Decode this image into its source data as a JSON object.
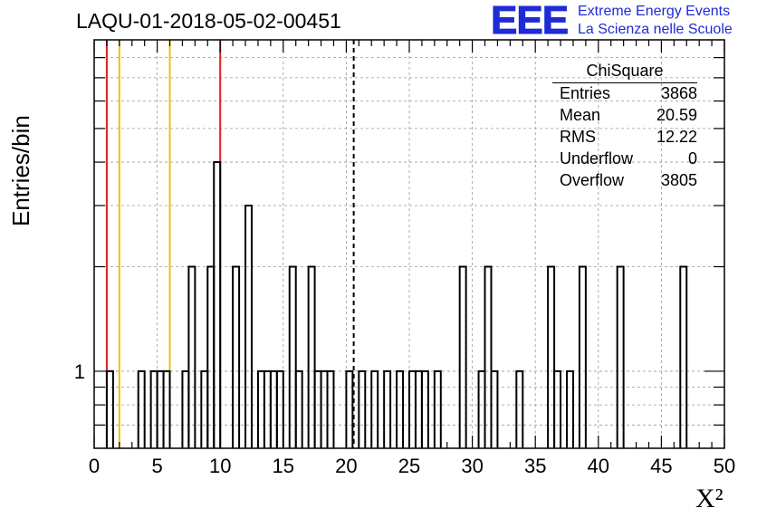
{
  "header": {
    "title": "LAQU-01-2018-05-02-00451"
  },
  "logo": {
    "mark": "EEE",
    "line1": "Extreme Energy Events",
    "line2": "La Scienza nelle Scuole",
    "color": "#1f2bd6"
  },
  "stats_box": {
    "title": "ChiSquare",
    "rows": [
      {
        "label": "Entries",
        "value": "3868"
      },
      {
        "label": "Mean",
        "value": "20.59"
      },
      {
        "label": "RMS",
        "value": "12.22"
      },
      {
        "label": "Underflow",
        "value": "0"
      },
      {
        "label": "Overflow",
        "value": "3805"
      }
    ]
  },
  "chart_data": {
    "type": "bar",
    "style": "step-histogram",
    "title": "LAQU-01-2018-05-02-00451",
    "xlabel": "X²",
    "ylabel": "Entries/bin",
    "xlim": [
      0,
      50
    ],
    "ylim": [
      0.6,
      9
    ],
    "yscale": "log",
    "grid": true,
    "bin_width": 0.5,
    "x_ticks": [
      "0",
      "5",
      "10",
      "15",
      "20",
      "25",
      "30",
      "35",
      "40",
      "45",
      "50"
    ],
    "y_tick_labels": [
      "1"
    ],
    "bins": [
      {
        "x": 1.0,
        "count": 1
      },
      {
        "x": 3.5,
        "count": 1
      },
      {
        "x": 4.5,
        "count": 1
      },
      {
        "x": 5.0,
        "count": 1
      },
      {
        "x": 5.5,
        "count": 1
      },
      {
        "x": 7.0,
        "count": 1
      },
      {
        "x": 7.5,
        "count": 2
      },
      {
        "x": 8.5,
        "count": 1
      },
      {
        "x": 9.0,
        "count": 2
      },
      {
        "x": 9.5,
        "count": 4
      },
      {
        "x": 11.0,
        "count": 2
      },
      {
        "x": 12.0,
        "count": 3
      },
      {
        "x": 13.0,
        "count": 1
      },
      {
        "x": 13.5,
        "count": 1
      },
      {
        "x": 14.0,
        "count": 1
      },
      {
        "x": 14.5,
        "count": 1
      },
      {
        "x": 15.5,
        "count": 2
      },
      {
        "x": 16.0,
        "count": 1
      },
      {
        "x": 17.0,
        "count": 2
      },
      {
        "x": 17.5,
        "count": 1
      },
      {
        "x": 18.0,
        "count": 1
      },
      {
        "x": 18.5,
        "count": 1
      },
      {
        "x": 20.0,
        "count": 1
      },
      {
        "x": 21.0,
        "count": 1
      },
      {
        "x": 22.0,
        "count": 1
      },
      {
        "x": 23.0,
        "count": 1
      },
      {
        "x": 24.0,
        "count": 1
      },
      {
        "x": 25.0,
        "count": 1
      },
      {
        "x": 25.5,
        "count": 1
      },
      {
        "x": 26.0,
        "count": 1
      },
      {
        "x": 27.0,
        "count": 1
      },
      {
        "x": 29.0,
        "count": 2
      },
      {
        "x": 30.5,
        "count": 1
      },
      {
        "x": 31.0,
        "count": 2
      },
      {
        "x": 31.5,
        "count": 1
      },
      {
        "x": 33.5,
        "count": 1
      },
      {
        "x": 36.0,
        "count": 2
      },
      {
        "x": 36.5,
        "count": 1
      },
      {
        "x": 37.5,
        "count": 1
      },
      {
        "x": 38.5,
        "count": 2
      },
      {
        "x": 41.5,
        "count": 2
      },
      {
        "x": 46.5,
        "count": 2
      }
    ],
    "markers": [
      {
        "x": 1.0,
        "color": "#e02020",
        "style": "solid"
      },
      {
        "x": 2.0,
        "color": "#f0c010",
        "style": "solid"
      },
      {
        "x": 6.0,
        "color": "#f0c010",
        "style": "solid"
      },
      {
        "x": 10.0,
        "color": "#e02020",
        "style": "solid"
      },
      {
        "x": 20.59,
        "color": "#000000",
        "style": "dashed"
      }
    ]
  }
}
